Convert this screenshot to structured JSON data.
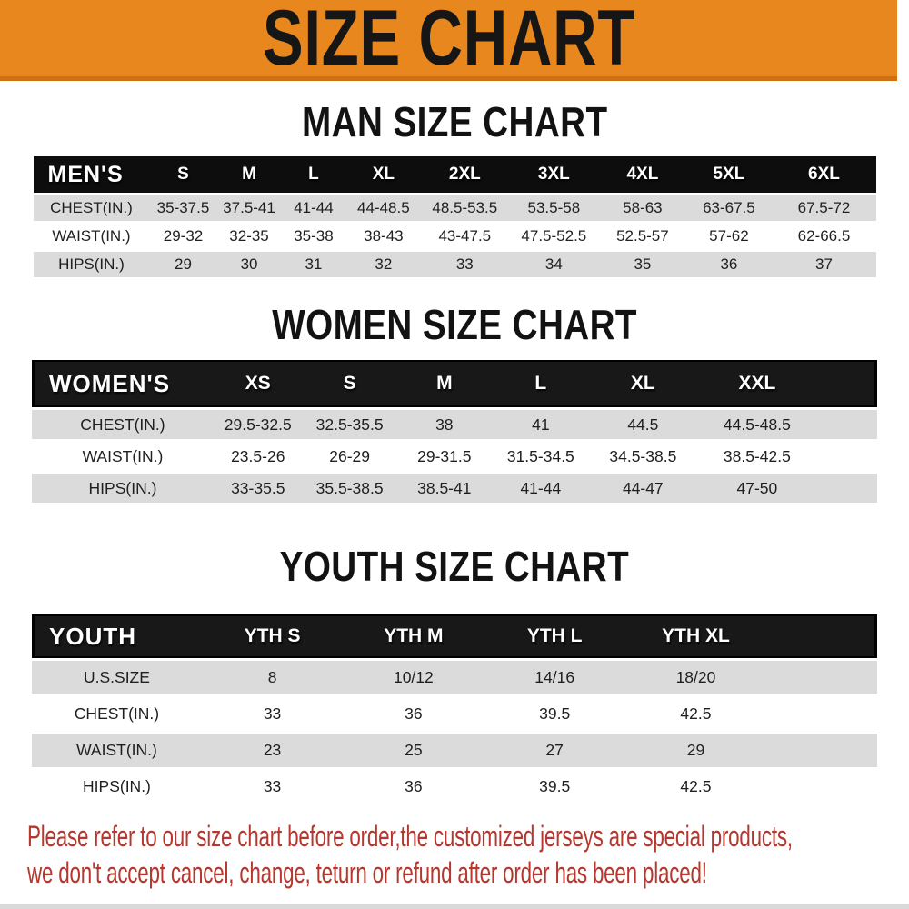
{
  "banner": {
    "title": "SIZE CHART"
  },
  "colors": {
    "banner_orange": "#E8871E",
    "banner_edge": "#CF7110",
    "header_black": "#111111",
    "row_gray": "#DBDBDB",
    "disclaimer_red": "#B5372E"
  },
  "men": {
    "section_title": "MAN SIZE CHART",
    "header_label": "MEN'S",
    "columns": [
      "S",
      "M",
      "L",
      "XL",
      "2XL",
      "3XL",
      "4XL",
      "5XL",
      "6XL"
    ],
    "rows": [
      {
        "label": "CHEST(IN.)",
        "values": [
          "35-37.5",
          "37.5-41",
          "41-44",
          "44-48.5",
          "48.5-53.5",
          "53.5-58",
          "58-63",
          "63-67.5",
          "67.5-72"
        ]
      },
      {
        "label": "WAIST(IN.)",
        "values": [
          "29-32",
          "32-35",
          "35-38",
          "38-43",
          "43-47.5",
          "47.5-52.5",
          "52.5-57",
          "57-62",
          "62-66.5"
        ]
      },
      {
        "label": "HIPS(IN.)",
        "values": [
          "29",
          "30",
          "31",
          "32",
          "33",
          "34",
          "35",
          "36",
          "37"
        ]
      }
    ]
  },
  "women": {
    "section_title": "WOMEN SIZE CHART",
    "header_label": "WOMEN'S",
    "columns": [
      "XS",
      "S",
      "M",
      "L",
      "XL",
      "XXL"
    ],
    "rows": [
      {
        "label": "CHEST(IN.)",
        "values": [
          "29.5-32.5",
          "32.5-35.5",
          "38",
          "41",
          "44.5",
          "44.5-48.5"
        ]
      },
      {
        "label": "WAIST(IN.)",
        "values": [
          "23.5-26",
          "26-29",
          "29-31.5",
          "31.5-34.5",
          "34.5-38.5",
          "38.5-42.5"
        ]
      },
      {
        "label": "HIPS(IN.)",
        "values": [
          "33-35.5",
          "35.5-38.5",
          "38.5-41",
          "41-44",
          "44-47",
          "47-50"
        ]
      }
    ]
  },
  "youth": {
    "section_title": "YOUTH SIZE CHART",
    "header_label": "YOUTH",
    "columns": [
      "YTH S",
      "YTH M",
      "YTH L",
      "YTH XL"
    ],
    "rows": [
      {
        "label": "U.S.SIZE",
        "values": [
          "8",
          "10/12",
          "14/16",
          "18/20"
        ]
      },
      {
        "label": "CHEST(IN.)",
        "values": [
          "33",
          "36",
          "39.5",
          "42.5"
        ]
      },
      {
        "label": "WAIST(IN.)",
        "values": [
          "23",
          "25",
          "27",
          "29"
        ]
      },
      {
        "label": "HIPS(IN.)",
        "values": [
          "33",
          "36",
          "39.5",
          "42.5"
        ]
      }
    ]
  },
  "disclaimer": {
    "line1": "Please refer to our size chart before order,the customized jerseys are special products,",
    "line2": "we don't accept cancel, change, teturn or refund after order has been placed!"
  }
}
